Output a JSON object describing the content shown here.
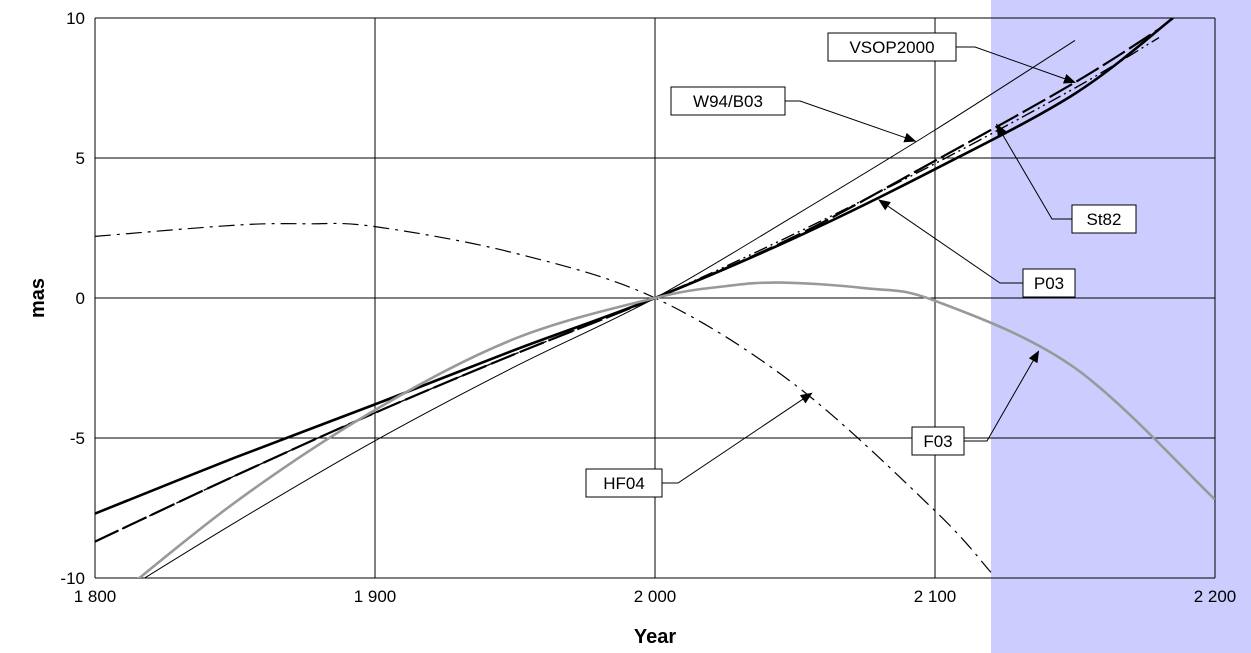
{
  "chart_data": {
    "type": "line",
    "xlabel": "Year",
    "ylabel": "mas",
    "xlim": [
      1800,
      2200
    ],
    "ylim": [
      -10,
      10
    ],
    "x_ticks": [
      1800,
      1900,
      2000,
      2100,
      2200
    ],
    "x_tick_labels": [
      "1 800",
      "1 900",
      "2 000",
      "2 100",
      "2 200"
    ],
    "y_ticks": [
      -10,
      -5,
      0,
      5,
      10
    ],
    "y_tick_labels": [
      "-10",
      "-5",
      "0",
      "5",
      "10"
    ],
    "grid": true,
    "shaded_region": {
      "x_from": 2120,
      "x_to": 2200,
      "color": "#ccccff"
    },
    "series": [
      {
        "name": "W94/B03",
        "style": "thin-solid",
        "color": "#000000",
        "x": [
          1800,
          1850,
          1900,
          1950,
          2000,
          2050,
          2100,
          2150
        ],
        "y": [
          -11.1,
          -8.02,
          -5.1,
          -2.45,
          0.0,
          2.95,
          6.0,
          9.2
        ]
      },
      {
        "name": "VSOP2000",
        "style": "dash-dot-dot",
        "color": "#000000",
        "x": [
          1800,
          1850,
          1900,
          1950,
          2000,
          2050,
          2100,
          2150,
          2180
        ],
        "y": [
          -8.7,
          -6.35,
          -4.1,
          -2.0,
          0.0,
          2.3,
          4.8,
          7.5,
          9.3
        ]
      },
      {
        "name": "St82",
        "style": "long-dash",
        "color": "#000000",
        "x": [
          1800,
          1850,
          1900,
          1950,
          2000,
          2050,
          2100,
          2150,
          2180
        ],
        "y": [
          -8.7,
          -6.35,
          -4.1,
          -2.0,
          0.0,
          2.2,
          4.9,
          7.7,
          9.6
        ]
      },
      {
        "name": "P03",
        "style": "thick-solid",
        "color": "#000000",
        "x": [
          1800,
          1850,
          1900,
          1950,
          2000,
          2050,
          2100,
          2150,
          2185
        ],
        "y": [
          -7.7,
          -5.7,
          -3.8,
          -1.85,
          0.0,
          2.15,
          4.6,
          7.3,
          10.0
        ]
      },
      {
        "name": "HF04",
        "style": "dash-dot",
        "color": "#000000",
        "x": [
          1800,
          1850,
          1875,
          1900,
          1950,
          2000,
          2050,
          2100,
          2120
        ],
        "y": [
          2.2,
          2.6,
          2.65,
          2.55,
          1.6,
          0.0,
          -3.1,
          -7.6,
          -9.8
        ]
      },
      {
        "name": "F03",
        "style": "gray-solid",
        "color": "#999999",
        "x": [
          1800,
          1850,
          1900,
          1950,
          2000,
          2025,
          2045,
          2075,
          2100,
          2150,
          2200
        ],
        "y": [
          -11.3,
          -7.3,
          -4.0,
          -1.45,
          0.0,
          0.42,
          0.55,
          0.35,
          -0.1,
          -2.5,
          -7.2
        ]
      }
    ],
    "annotations": [
      {
        "text": "VSOP2000",
        "series": "VSOP2000",
        "x": 2150,
        "y": 7.7
      },
      {
        "text": "W94/B03",
        "series": "W94/B03",
        "x": 2093,
        "y": 5.6
      },
      {
        "text": "St82",
        "series": "St82",
        "x": 2122,
        "y": 6.2
      },
      {
        "text": "P03",
        "series": "P03",
        "x": 2080,
        "y": 3.5
      },
      {
        "text": "F03",
        "series": "F03",
        "x": 2137,
        "y": -1.9
      },
      {
        "text": "HF04",
        "series": "HF04",
        "x": 2056,
        "y": -3.4
      }
    ]
  }
}
